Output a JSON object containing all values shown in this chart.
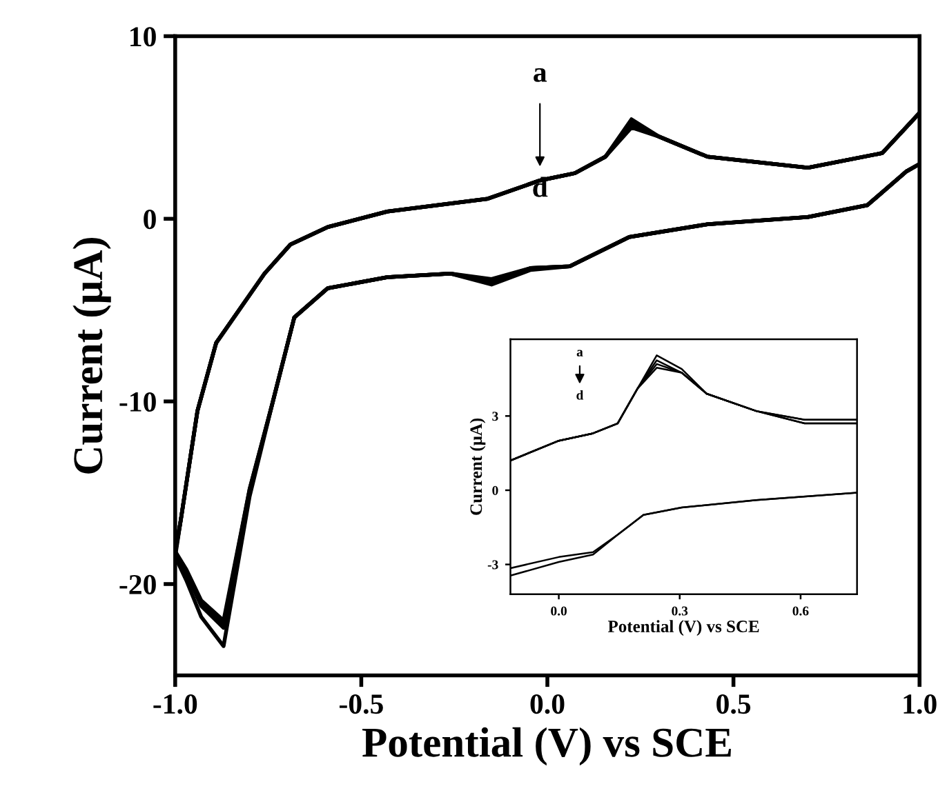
{
  "chart_data": [
    {
      "type": "line",
      "xlabel": "Potential (V) vs SCE",
      "ylabel": "Current (μA)",
      "xlim": [
        -1.0,
        1.0
      ],
      "ylim": [
        -25,
        10
      ],
      "xticks": [
        {
          "value": -1.0,
          "label": "-1.0"
        },
        {
          "value": -0.5,
          "label": "-0.5"
        },
        {
          "value": 0.0,
          "label": "0.0"
        },
        {
          "value": 0.5,
          "label": "0.5"
        },
        {
          "value": 1.0,
          "label": "1.0"
        }
      ],
      "yticks": [
        {
          "value": -20,
          "label": "-20"
        },
        {
          "value": -10,
          "label": "-10"
        },
        0,
        10
      ],
      "annotations": [
        "a",
        "d"
      ],
      "series": [
        {
          "color": "#000000",
          "x": [
            1.0,
            0.965,
            0.86,
            0.7,
            0.43,
            0.22,
            0.14,
            0.06,
            -0.045,
            -0.15,
            -0.26,
            -0.43,
            -0.59,
            -0.68,
            -0.74,
            -0.8,
            -0.87,
            -0.93,
            -0.97,
            -1.0,
            -0.985,
            -0.94,
            -0.89,
            -0.76,
            -0.69,
            -0.59,
            -0.43,
            -0.16,
            -0.02,
            0.074,
            0.156,
            0.226,
            0.3,
            0.43,
            0.7,
            0.9,
            1.0
          ],
          "values": [
            3.0,
            2.6,
            0.75,
            0.1,
            -0.3,
            -1.0,
            -1.8,
            -2.6,
            -2.8,
            -3.6,
            -3.0,
            -3.2,
            -3.8,
            -5.4,
            -10.2,
            -15.2,
            -23.4,
            -21.8,
            -19.8,
            -18.5,
            -16.5,
            -10.5,
            -6.8,
            -3.0,
            -1.4,
            -0.45,
            0.4,
            1.1,
            2.1,
            2.5,
            3.4,
            5.45,
            4.5,
            3.4,
            2.8,
            3.6,
            5.8
          ]
        },
        {
          "color": "#000000",
          "x": [
            1.0,
            0.965,
            0.86,
            0.7,
            0.43,
            0.22,
            0.14,
            0.06,
            -0.045,
            -0.15,
            -0.26,
            -0.43,
            -0.59,
            -0.68,
            -0.74,
            -0.8,
            -0.87,
            -0.93,
            -0.97,
            -1.0,
            -0.985,
            -0.94,
            -0.89,
            -0.76,
            -0.69,
            -0.59,
            -0.43,
            -0.16,
            -0.02,
            0.074,
            0.156,
            0.226,
            0.3,
            0.43,
            0.7,
            0.9,
            1.0
          ],
          "values": [
            3.0,
            2.6,
            0.75,
            0.1,
            -0.3,
            -1.0,
            -1.8,
            -2.6,
            -2.7,
            -3.5,
            -3.0,
            -3.2,
            -3.8,
            -5.4,
            -10.2,
            -14.9,
            -22.4,
            -21.2,
            -19.4,
            -18.3,
            -16.5,
            -10.5,
            -6.8,
            -3.0,
            -1.4,
            -0.45,
            0.4,
            1.1,
            2.1,
            2.5,
            3.4,
            5.3,
            4.5,
            3.4,
            2.8,
            3.6,
            5.8
          ]
        },
        {
          "color": "#000000",
          "x": [
            1.0,
            0.965,
            0.86,
            0.7,
            0.43,
            0.22,
            0.14,
            0.06,
            -0.045,
            -0.15,
            -0.26,
            -0.43,
            -0.59,
            -0.68,
            -0.74,
            -0.8,
            -0.87,
            -0.93,
            -0.97,
            -1.0,
            -0.985,
            -0.94,
            -0.89,
            -0.76,
            -0.69,
            -0.59,
            -0.43,
            -0.16,
            -0.02,
            0.074,
            0.156,
            0.226,
            0.3,
            0.43,
            0.7,
            0.9,
            1.0
          ],
          "values": [
            3.0,
            2.6,
            0.75,
            0.1,
            -0.3,
            -1.0,
            -1.8,
            -2.6,
            -2.7,
            -3.4,
            -3.0,
            -3.2,
            -3.8,
            -5.4,
            -10.2,
            -14.8,
            -22.2,
            -21.0,
            -19.3,
            -18.3,
            -16.5,
            -10.5,
            -6.8,
            -3.0,
            -1.4,
            -0.45,
            0.4,
            1.1,
            2.1,
            2.5,
            3.4,
            5.15,
            4.5,
            3.4,
            2.8,
            3.6,
            5.8
          ]
        },
        {
          "color": "#000000",
          "x": [
            1.0,
            0.965,
            0.86,
            0.7,
            0.43,
            0.22,
            0.14,
            0.06,
            -0.045,
            -0.15,
            -0.26,
            -0.43,
            -0.59,
            -0.68,
            -0.74,
            -0.8,
            -0.87,
            -0.93,
            -0.97,
            -1.0,
            -0.985,
            -0.94,
            -0.89,
            -0.76,
            -0.69,
            -0.59,
            -0.43,
            -0.16,
            -0.02,
            0.074,
            0.156,
            0.226,
            0.3,
            0.43,
            0.7,
            0.9,
            1.0
          ],
          "values": [
            3.0,
            2.6,
            0.75,
            0.1,
            -0.3,
            -1.0,
            -1.8,
            -2.6,
            -2.7,
            -3.3,
            -3.0,
            -3.2,
            -3.8,
            -5.4,
            -10.2,
            -14.8,
            -22.0,
            -20.9,
            -19.2,
            -18.2,
            -16.5,
            -10.5,
            -6.8,
            -3.0,
            -1.4,
            -0.45,
            0.4,
            1.1,
            2.1,
            2.5,
            3.4,
            5.0,
            4.5,
            3.4,
            2.8,
            3.6,
            5.8
          ]
        }
      ]
    },
    {
      "type": "line",
      "xlabel": "Potential (V) vs SCE",
      "ylabel": "Current (μA)",
      "xlim": [
        -0.12,
        0.74
      ],
      "ylim": [
        -4.2,
        6.1
      ],
      "xticks": [
        {
          "value": 0.0,
          "label": "0.0"
        },
        {
          "value": 0.3,
          "label": "0.3"
        },
        {
          "value": 0.6,
          "label": "0.6"
        }
      ],
      "yticks": [
        {
          "value": -3,
          "label": "-3"
        },
        0,
        3
      ],
      "annotations": [
        "a",
        "d"
      ],
      "series": [
        {
          "color": "#000000",
          "x": [
            -0.12,
            0.0,
            0.085,
            0.146,
            0.21,
            0.305,
            0.49,
            0.74
          ],
          "values": [
            -3.15,
            -2.7,
            -2.5,
            -1.8,
            -1.0,
            -0.7,
            -0.4,
            -0.1
          ]
        },
        {
          "color": "#000000",
          "x": [
            -0.12,
            0.0,
            0.085,
            0.146,
            0.21,
            0.305,
            0.49,
            0.74
          ],
          "values": [
            -3.45,
            -2.9,
            -2.6,
            -1.8,
            -1.0,
            -0.7,
            -0.4,
            -0.1
          ]
        },
        {
          "color": "#000000",
          "x": [
            0.74,
            0.61,
            0.49,
            0.367,
            0.305,
            0.243,
            0.195,
            0.146,
            0.085,
            0.0,
            -0.12
          ],
          "values": [
            2.85,
            2.85,
            3.2,
            3.9,
            4.9,
            5.45,
            4.1,
            2.7,
            2.3,
            2.0,
            1.2
          ]
        },
        {
          "color": "#000000",
          "x": [
            0.74,
            0.61,
            0.49,
            0.367,
            0.305,
            0.243,
            0.195,
            0.146,
            0.085,
            0.0,
            -0.12
          ],
          "values": [
            2.85,
            2.85,
            3.2,
            3.9,
            4.75,
            5.25,
            4.1,
            2.7,
            2.3,
            2.0,
            1.2
          ]
        },
        {
          "color": "#000000",
          "x": [
            0.74,
            0.61,
            0.49,
            0.367,
            0.305,
            0.243,
            0.195,
            0.146,
            0.085,
            0.0,
            -0.12
          ],
          "values": [
            2.7,
            2.7,
            3.2,
            3.9,
            4.75,
            5.1,
            4.1,
            2.7,
            2.3,
            2.0,
            1.2
          ]
        },
        {
          "color": "#000000",
          "x": [
            0.74,
            0.61,
            0.49,
            0.367,
            0.305,
            0.243,
            0.195,
            0.146,
            0.085,
            0.0,
            -0.12
          ],
          "values": [
            2.7,
            2.7,
            3.2,
            3.9,
            4.75,
            4.95,
            4.1,
            2.7,
            2.3,
            2.0,
            1.2
          ]
        }
      ]
    }
  ]
}
